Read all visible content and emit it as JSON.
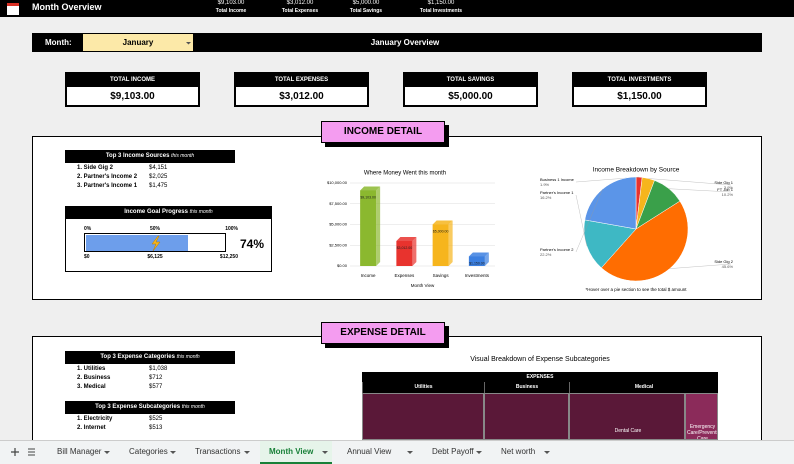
{
  "header": {
    "title": "Month Overview",
    "stats": [
      {
        "value": "$9,103.00",
        "label": "Total Income"
      },
      {
        "value": "$3,012.00",
        "label": "Total Expenses"
      },
      {
        "value": "$5,000.00",
        "label": "Total Savings"
      },
      {
        "value": "$1,150.00",
        "label": "Total Investments"
      }
    ]
  },
  "month_bar": {
    "label": "Month:",
    "value": "January",
    "overview": "January Overview"
  },
  "cards": [
    {
      "label": "TOTAL INCOME",
      "value": "$9,103.00"
    },
    {
      "label": "TOTAL EXPENSES",
      "value": "$3,012.00"
    },
    {
      "label": "TOTAL SAVINGS",
      "value": "$5,000.00"
    },
    {
      "label": "TOTAL INVESTMENTS",
      "value": "$1,150.00"
    }
  ],
  "income_detail": {
    "title": "INCOME DETAIL",
    "top_sources": {
      "title": "Top 3 Income Sources",
      "subtitle": "this month",
      "rows": [
        [
          "1. Side Gig 2",
          "$4,151"
        ],
        [
          "2. Partner's Income 2",
          "$2,025"
        ],
        [
          "3. Partner's Income 1",
          "$1,475"
        ]
      ]
    },
    "goal": {
      "title": "Income Goal Progress",
      "subtitle": "this month",
      "scale_top": [
        "0%",
        "50%",
        "100%"
      ],
      "scale_bottom": [
        "$0",
        "$6,125",
        "$12,250"
      ],
      "values": [
        74
      ],
      "value_labels": [
        "74%"
      ]
    },
    "bar_chart": {
      "type": "bar",
      "title": "Where Money Went this month",
      "x_label": "Month View",
      "categories": [
        "Income",
        "Expenses",
        "Savings",
        "Investments"
      ],
      "values": [
        9103,
        3012,
        5000,
        1150
      ],
      "value_labels": [
        "$9,103.00",
        "$3,012.00",
        "$5,000.00",
        "$1,150.00"
      ],
      "colors": [
        "#8bb82f",
        "#e8332e",
        "#f6b51d",
        "#3b7fe0"
      ],
      "ylim": [
        0,
        10000
      ],
      "yticks": [
        {
          "value": 0,
          "label": "$0.00"
        },
        {
          "value": 2500,
          "label": "$2,500.00"
        },
        {
          "value": 5000,
          "label": "$5,000.00"
        },
        {
          "value": 7500,
          "label": "$7,500.00"
        },
        {
          "value": 10000,
          "label": "$10,000.00"
        }
      ],
      "grid": true
    },
    "pie_chart": {
      "type": "pie",
      "title": "Income Breakdown by Source",
      "note": "*Hover over a pie section to see the total $ amount",
      "categories": [
        "Business 1 Income",
        "Side Gig 1",
        "FT Job 1",
        "Side Gig 2",
        "Partner's Income 1",
        "Partner's Income 2"
      ],
      "values": [
        1.9,
        3.9,
        10.2,
        45.6,
        16.2,
        22.2
      ],
      "value_labels": [
        "1.9%",
        "3.9%",
        "10.2%",
        "45.6%",
        "16.2%",
        "22.2%"
      ],
      "colors": [
        "#e8332e",
        "#f6b51d",
        "#3aa04a",
        "#ff6d01",
        "#3eb8c4",
        "#5b95e8"
      ]
    }
  },
  "expense_detail": {
    "title": "EXPENSE DETAIL",
    "top_categories": {
      "title": "Top 3 Expense Categories",
      "subtitle": "this month",
      "rows": [
        [
          "1. Utilities",
          "$1,038"
        ],
        [
          "2. Business",
          "$712"
        ],
        [
          "3. Medical",
          "$577"
        ]
      ]
    },
    "top_subcategories": {
      "title": "Top 3 Expense Subcategories",
      "subtitle": "this month",
      "rows": [
        [
          "1. Electricity",
          "$525"
        ],
        [
          "2. Internet",
          "$513"
        ]
      ]
    },
    "treemap": {
      "title": "Visual Breakdown of Expense Subcategories",
      "header": "EXPENSES",
      "groups": [
        "Utilities",
        "Business",
        "Medical"
      ],
      "cells": [
        "Dental Care",
        "Emergency Care/Preventive Care"
      ]
    }
  },
  "tabs": [
    "Bill Manager",
    "Categories",
    "Transactions",
    "Month View",
    "Annual View",
    "Debt Payoff",
    "Net worth"
  ]
}
